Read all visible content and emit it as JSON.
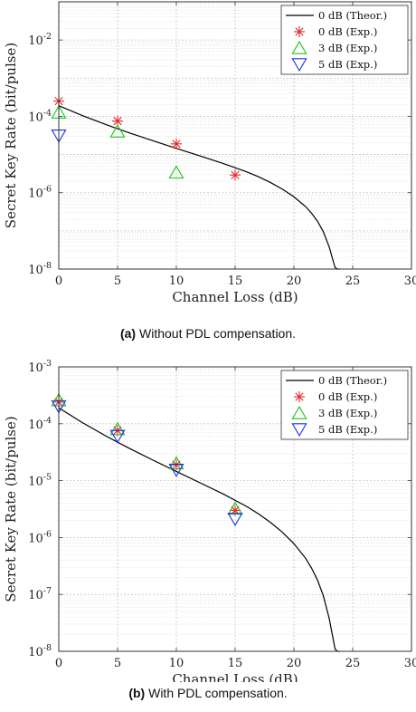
{
  "chart_data": [
    {
      "id": "a",
      "type": "scatter",
      "caption_tag": "(a)",
      "caption_text": "Without PDL compensation.",
      "xlabel": "Channel Loss (dB)",
      "ylabel": "Secret Key Rate (bit/pulse)",
      "xlim": [
        0,
        30
      ],
      "ylim_log10": [
        -8,
        -1
      ],
      "xticks": [
        0,
        5,
        10,
        15,
        20,
        25,
        30
      ],
      "yticks_log10": [
        -8,
        -6,
        -4,
        -2
      ],
      "ytick_labels": [
        "10",
        "10",
        "10",
        "10"
      ],
      "ytick_exponents": [
        "-8",
        "-6",
        "-4",
        "-2"
      ],
      "grid": true,
      "legend_position": "top-right",
      "theory": {
        "name": "0 dB (Theor.)",
        "x": [
          0,
          2,
          4,
          6,
          8,
          10,
          12,
          14,
          16,
          17,
          18,
          19,
          20,
          21,
          21.5,
          22,
          22.5,
          23,
          23.3,
          23.5,
          23.7,
          23.8,
          23.9
        ],
        "y": [
          0.00019,
          0.000105,
          6.1e-05,
          3.7e-05,
          2.3e-05,
          1.45e-05,
          9.2e-06,
          5.8e-06,
          3.5e-06,
          2.6e-06,
          1.85e-06,
          1.25e-06,
          7.8e-07,
          4.3e-07,
          2.9e-07,
          1.8e-07,
          9.5e-08,
          3.8e-08,
          1.8e-08,
          1.1e-08,
          4e-09,
          2e-09,
          5e-10
        ],
        "color": "#000000"
      },
      "series": [
        {
          "name": "0 dB (Exp.)",
          "marker": "star",
          "color": "#e8282a",
          "x": [
            0,
            5,
            10,
            15
          ],
          "y": [
            0.00025,
            7.5e-05,
            1.9e-05,
            2.9e-06
          ]
        },
        {
          "name": "3 dB (Exp.)",
          "marker": "triangle-up",
          "color": "#18c818",
          "x": [
            0,
            5,
            10
          ],
          "y": [
            0.00012,
            3.8e-05,
            3.2e-06
          ]
        },
        {
          "name": "5 dB (Exp.)",
          "marker": "triangle-down",
          "color": "#1f2fe8",
          "x": [
            0
          ],
          "y": [
            3.3e-05
          ]
        }
      ]
    },
    {
      "id": "b",
      "type": "scatter",
      "caption_tag": "(b)",
      "caption_text": "With PDL compensation.",
      "xlabel": "Channel Loss (dB)",
      "ylabel": "Secret Key Rate (bit/pulse)",
      "xlim": [
        0,
        30
      ],
      "ylim_log10": [
        -8,
        -3
      ],
      "xticks": [
        0,
        5,
        10,
        15,
        20,
        25,
        30
      ],
      "yticks_log10": [
        -8,
        -7,
        -6,
        -5,
        -4,
        -3
      ],
      "ytick_labels": [
        "10",
        "10",
        "10",
        "10",
        "10",
        "10"
      ],
      "ytick_exponents": [
        "-8",
        "-7",
        "-6",
        "-5",
        "-4",
        "-3"
      ],
      "grid": true,
      "legend_position": "top-right",
      "theory": {
        "name": "0 dB (Theor.)",
        "x": [
          0,
          2,
          4,
          6,
          8,
          10,
          12,
          14,
          16,
          17,
          18,
          19,
          20,
          21,
          21.5,
          22,
          22.5,
          23,
          23.3,
          23.5,
          23.7,
          23.8,
          23.9
        ],
        "y": [
          0.00019,
          0.000105,
          6.1e-05,
          3.7e-05,
          2.3e-05,
          1.45e-05,
          9.2e-06,
          5.8e-06,
          3.5e-06,
          2.6e-06,
          1.85e-06,
          1.25e-06,
          7.8e-07,
          4.3e-07,
          2.9e-07,
          1.8e-07,
          9.5e-08,
          3.8e-08,
          1.8e-08,
          1.1e-08,
          4e-09,
          2e-09,
          5e-10
        ],
        "color": "#000000"
      },
      "series": [
        {
          "name": "0 dB (Exp.)",
          "marker": "star",
          "color": "#e8282a",
          "x": [
            0,
            5,
            10,
            15
          ],
          "y": [
            0.00024,
            7.6e-05,
            1.9e-05,
            3e-06
          ]
        },
        {
          "name": "3 dB (Exp.)",
          "marker": "triangle-up",
          "color": "#18c818",
          "x": [
            0,
            5,
            10,
            15
          ],
          "y": [
            0.00025,
            7.8e-05,
            1.95e-05,
            3.1e-06
          ]
        },
        {
          "name": "5 dB (Exp.)",
          "marker": "triangle-down",
          "color": "#1f2fe8",
          "x": [
            0,
            5,
            10,
            15
          ],
          "y": [
            0.00021,
            6.3e-05,
            1.6e-05,
            2.2e-06
          ]
        }
      ]
    }
  ]
}
